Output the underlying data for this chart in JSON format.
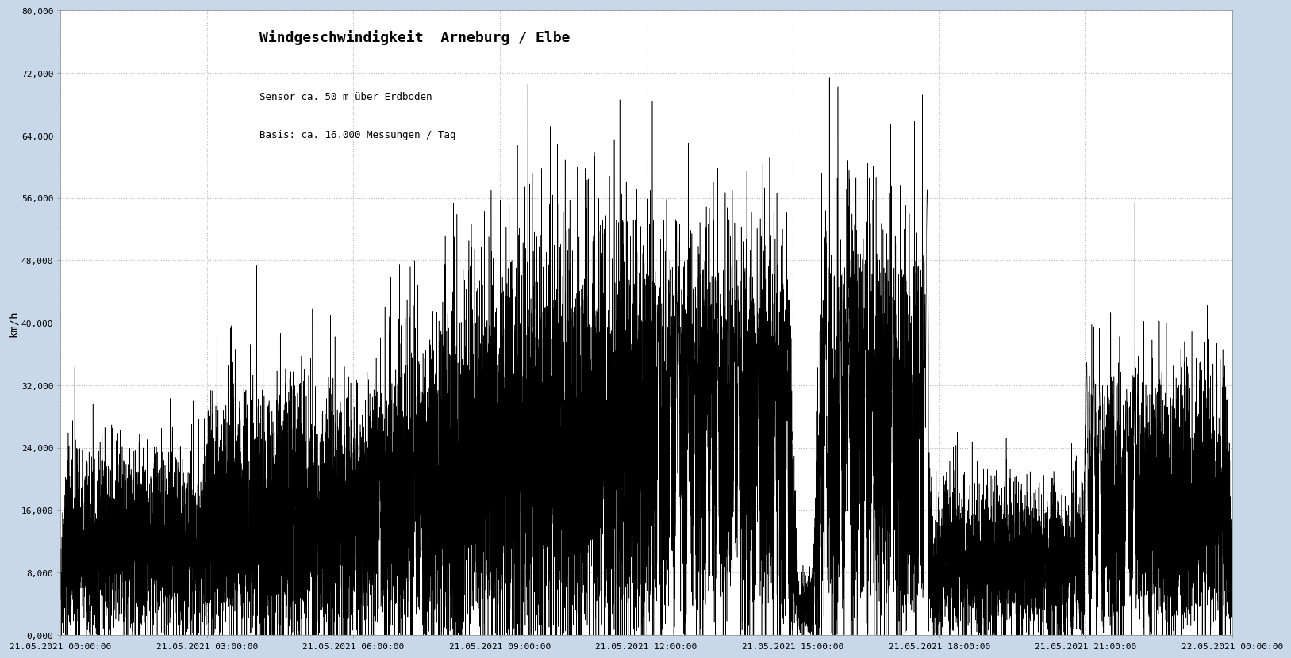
{
  "title": "Windgeschwindigkeit  Arneburg / Elbe",
  "subtitle1": "Sensor ca. 50 m über Erdboden",
  "subtitle2": "Basis: ca. 16.000 Messungen / Tag",
  "ylabel": "km/h",
  "ylim": [
    0,
    80000
  ],
  "yticks": [
    0,
    8000,
    16000,
    24000,
    32000,
    40000,
    48000,
    56000,
    64000,
    72000,
    80000
  ],
  "ytick_labels": [
    "0,000",
    "8,000",
    "16,000",
    "24,000",
    "32,000",
    "40,000",
    "48,000",
    "56,000",
    "64,000",
    "72,000",
    "80,000"
  ],
  "xtick_labels": [
    "21.05.2021 00:00:00",
    "21.05.2021 03:00:00",
    "21.05.2021 06:00:00",
    "21.05.2021 09:00:00",
    "21.05.2021 12:00:00",
    "21.05.2021 15:00:00",
    "21.05.2021 18:00:00",
    "21.05.2021 21:00:00",
    "22.05.2021 00:00:00"
  ],
  "line_color": "#000000",
  "bg_color": "#c8d8e8",
  "plot_bg_color": "#ffffff",
  "grid_color": "#888888",
  "title_fontsize": 13,
  "subtitle_fontsize": 9,
  "tick_fontsize": 8,
  "ylabel_fontsize": 10,
  "num_points": 17280,
  "random_seed": 42
}
